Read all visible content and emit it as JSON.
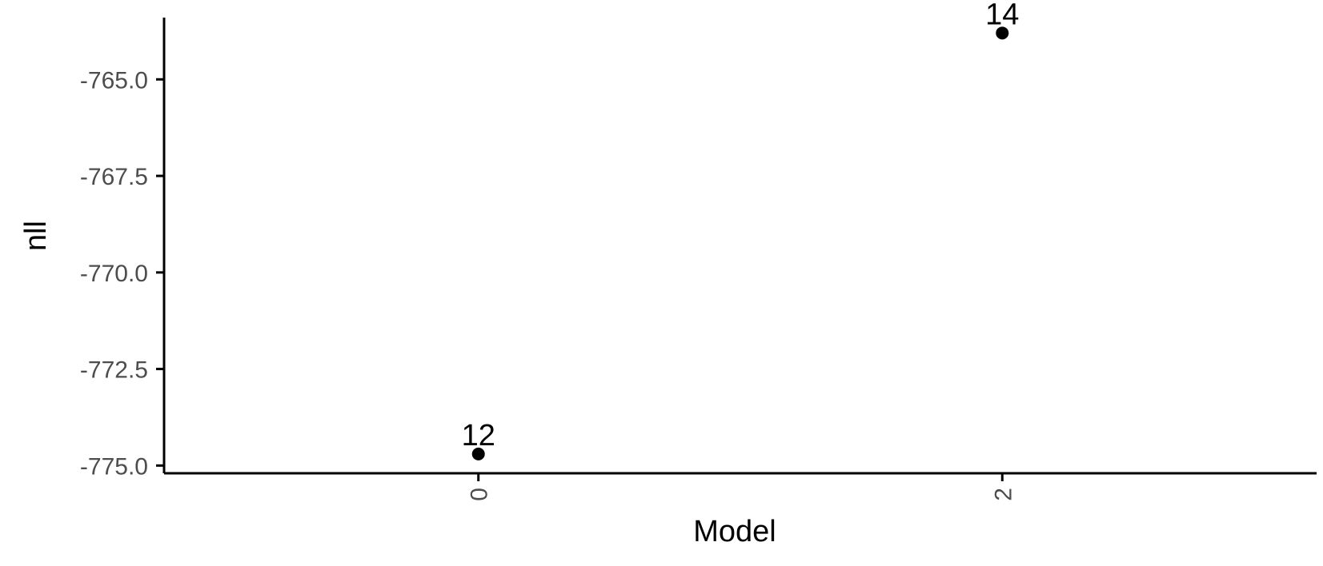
{
  "chart_data": {
    "type": "scatter",
    "title": "",
    "xlabel": "Model",
    "ylabel": "nll",
    "x_categories": [
      "0",
      "2"
    ],
    "points": [
      {
        "x": "0",
        "y": -774.7,
        "label": "12"
      },
      {
        "x": "2",
        "y": -763.8,
        "label": "14"
      }
    ],
    "y_ticks": [
      -775.0,
      -772.5,
      -770.0,
      -767.5,
      -765.0
    ],
    "y_tick_labels": [
      "-775.0",
      "-772.5",
      "-770.0",
      "-767.5",
      "-765.0"
    ],
    "ylim": [
      -775.2,
      -763.4
    ],
    "grid": false,
    "legend": "none",
    "colors": {
      "point": "#000000",
      "axis": "#000000",
      "tick_text": "#4d4d4d"
    }
  }
}
